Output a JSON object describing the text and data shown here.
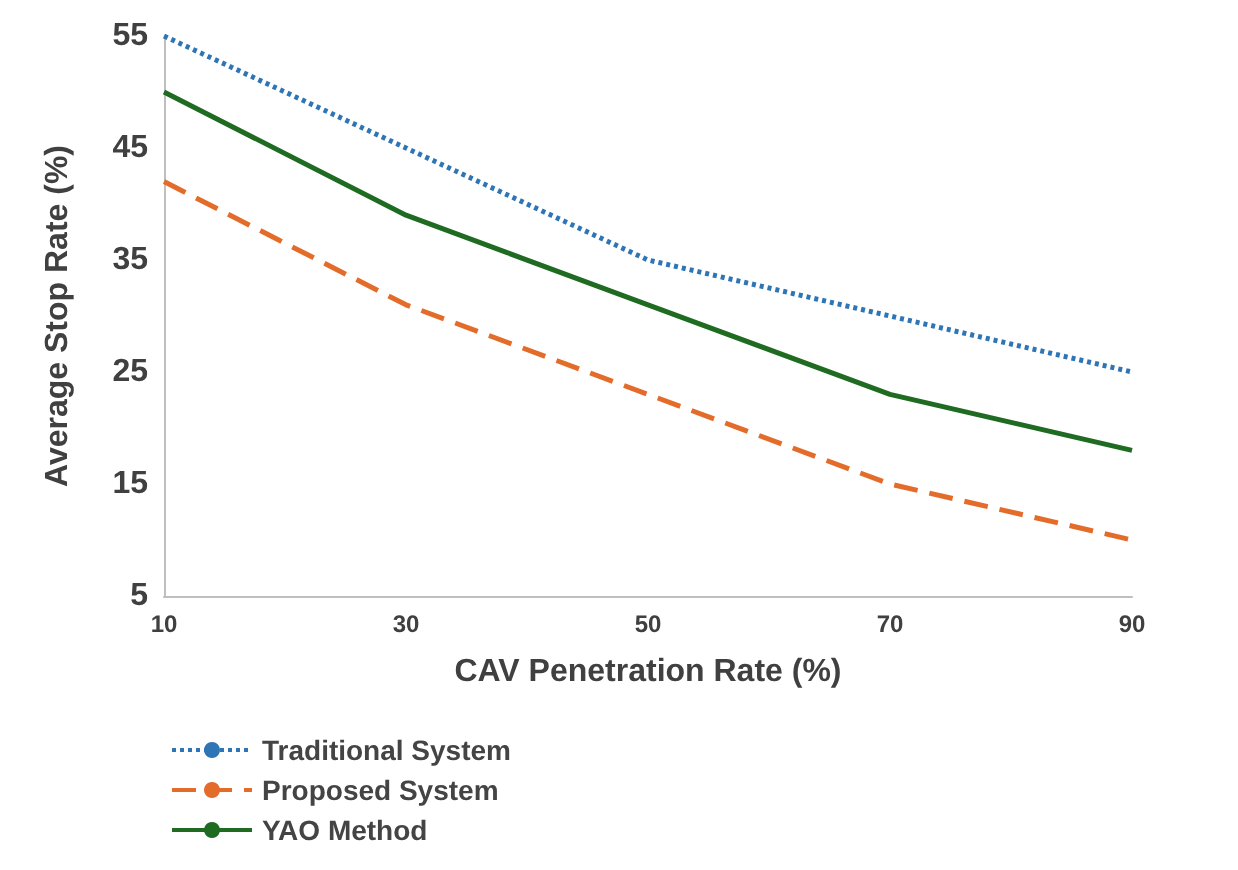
{
  "chart_data": {
    "type": "line",
    "xlabel": "CAV Penetration Rate (%)",
    "ylabel": "Average Stop Rate (%)",
    "x": [
      10,
      30,
      50,
      70,
      90
    ],
    "xlim": [
      10,
      90
    ],
    "xticks": [
      10,
      30,
      50,
      70,
      90
    ],
    "ylim": [
      5,
      55
    ],
    "yticks": [
      5,
      15,
      25,
      35,
      45,
      55
    ],
    "grid": false,
    "legend": "bottom left",
    "marker": "none",
    "series": [
      {
        "name": "Traditional System",
        "color": "#2e75b6",
        "line_style": "dotted",
        "values": [
          55,
          45,
          35,
          30,
          25
        ]
      },
      {
        "name": "Proposed System",
        "color": "#e46c2a",
        "line_style": "dashed",
        "values": [
          42,
          31,
          23,
          15,
          10
        ]
      },
      {
        "name": "YAO Method",
        "color": "#1f6b22",
        "line_style": "solid",
        "values": [
          50,
          39,
          31,
          23,
          18
        ]
      }
    ]
  }
}
